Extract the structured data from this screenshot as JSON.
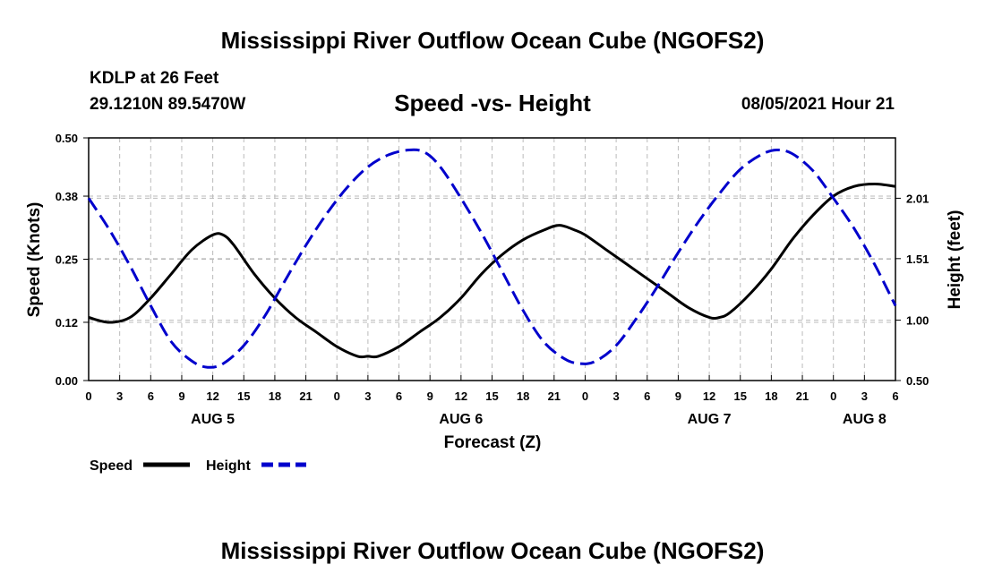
{
  "header": {
    "title": "Mississippi River Outflow Ocean Cube (NGOFS2)",
    "station": "KDLP at 26 Feet",
    "coordinates": "29.1210N  89.5470W",
    "subtitle": "Speed -vs- Height",
    "datetime": "08/05/2021 Hour 21"
  },
  "footer": {
    "title": "Mississippi River Outflow Ocean Cube (NGOFS2)"
  },
  "legend": {
    "speed_label": "Speed",
    "height_label": "Height"
  },
  "colors": {
    "speed": "#000000",
    "height": "#0000cc",
    "grid": "#bbbbbb"
  },
  "chart_data": {
    "type": "line",
    "title": "Speed -vs- Height",
    "xlabel": "Forecast (Z)",
    "ylabel": "Speed (Knots)",
    "y2label": "Height (feet)",
    "xlim": [
      0,
      78
    ],
    "ylim": [
      0,
      0.5
    ],
    "y2lim": [
      0.5,
      2.51
    ],
    "x_ticks": [
      0,
      3,
      6,
      9,
      12,
      15,
      18,
      21,
      24,
      27,
      30,
      33,
      36,
      39,
      42,
      45,
      48,
      51,
      54,
      57,
      60,
      63,
      66,
      69,
      72,
      75,
      78
    ],
    "x_tick_labels": [
      "0",
      "3",
      "6",
      "9",
      "12",
      "15",
      "18",
      "21",
      "0",
      "3",
      "6",
      "9",
      "12",
      "15",
      "18",
      "21",
      "0",
      "3",
      "6",
      "9",
      "12",
      "15",
      "18",
      "21",
      "0",
      "3",
      "6"
    ],
    "date_labels": [
      {
        "x": 12,
        "label": "AUG 5"
      },
      {
        "x": 36,
        "label": "AUG 6"
      },
      {
        "x": 60,
        "label": "AUG 7"
      },
      {
        "x": 75,
        "label": "AUG 8"
      }
    ],
    "y_ticks": [
      0.0,
      0.12,
      0.25,
      0.38,
      0.5
    ],
    "y_tick_labels": [
      "0.00",
      "0.12",
      "0.25",
      "0.38",
      "0.50"
    ],
    "y2_ticks": [
      0.5,
      1.0,
      1.51,
      2.01
    ],
    "y2_tick_labels": [
      "0.50",
      "1.00",
      "1.51",
      "2.01"
    ],
    "grid": true,
    "series": [
      {
        "name": "Speed",
        "axis": "left",
        "x": [
          0,
          2,
          4,
          6,
          8,
          10,
          12,
          13,
          14,
          16,
          18,
          20,
          22,
          24,
          26,
          27,
          28,
          30,
          32,
          34,
          36,
          38,
          40,
          42,
          44,
          45.5,
          47,
          48,
          50,
          52,
          54,
          56,
          58,
          60,
          61,
          62,
          64,
          66,
          68,
          70,
          72,
          74,
          76,
          78
        ],
        "values": [
          0.13,
          0.12,
          0.13,
          0.17,
          0.22,
          0.27,
          0.3,
          0.3,
          0.28,
          0.22,
          0.17,
          0.13,
          0.1,
          0.07,
          0.05,
          0.05,
          0.05,
          0.07,
          0.1,
          0.13,
          0.17,
          0.22,
          0.26,
          0.29,
          0.31,
          0.32,
          0.31,
          0.3,
          0.27,
          0.24,
          0.21,
          0.18,
          0.15,
          0.13,
          0.13,
          0.14,
          0.18,
          0.23,
          0.29,
          0.34,
          0.38,
          0.4,
          0.405,
          0.4
        ]
      },
      {
        "name": "Height",
        "axis": "right",
        "x": [
          0,
          2,
          4,
          6,
          8,
          10,
          11.5,
          13,
          15,
          17,
          19,
          21,
          23,
          25,
          27,
          29,
          31,
          32.5,
          34,
          36,
          38,
          40,
          42,
          44,
          46,
          47.5,
          49,
          51,
          53,
          55,
          57,
          59,
          61,
          63,
          65,
          66.5,
          68,
          70,
          72,
          74,
          76,
          78
        ],
        "values": [
          2.01,
          1.75,
          1.45,
          1.12,
          0.82,
          0.66,
          0.61,
          0.64,
          0.79,
          1.03,
          1.33,
          1.62,
          1.88,
          2.1,
          2.27,
          2.37,
          2.41,
          2.39,
          2.27,
          2.01,
          1.72,
          1.4,
          1.08,
          0.82,
          0.68,
          0.64,
          0.66,
          0.79,
          1.02,
          1.28,
          1.56,
          1.82,
          2.05,
          2.25,
          2.37,
          2.41,
          2.38,
          2.24,
          2.01,
          1.76,
          1.46,
          1.12
        ]
      }
    ]
  }
}
